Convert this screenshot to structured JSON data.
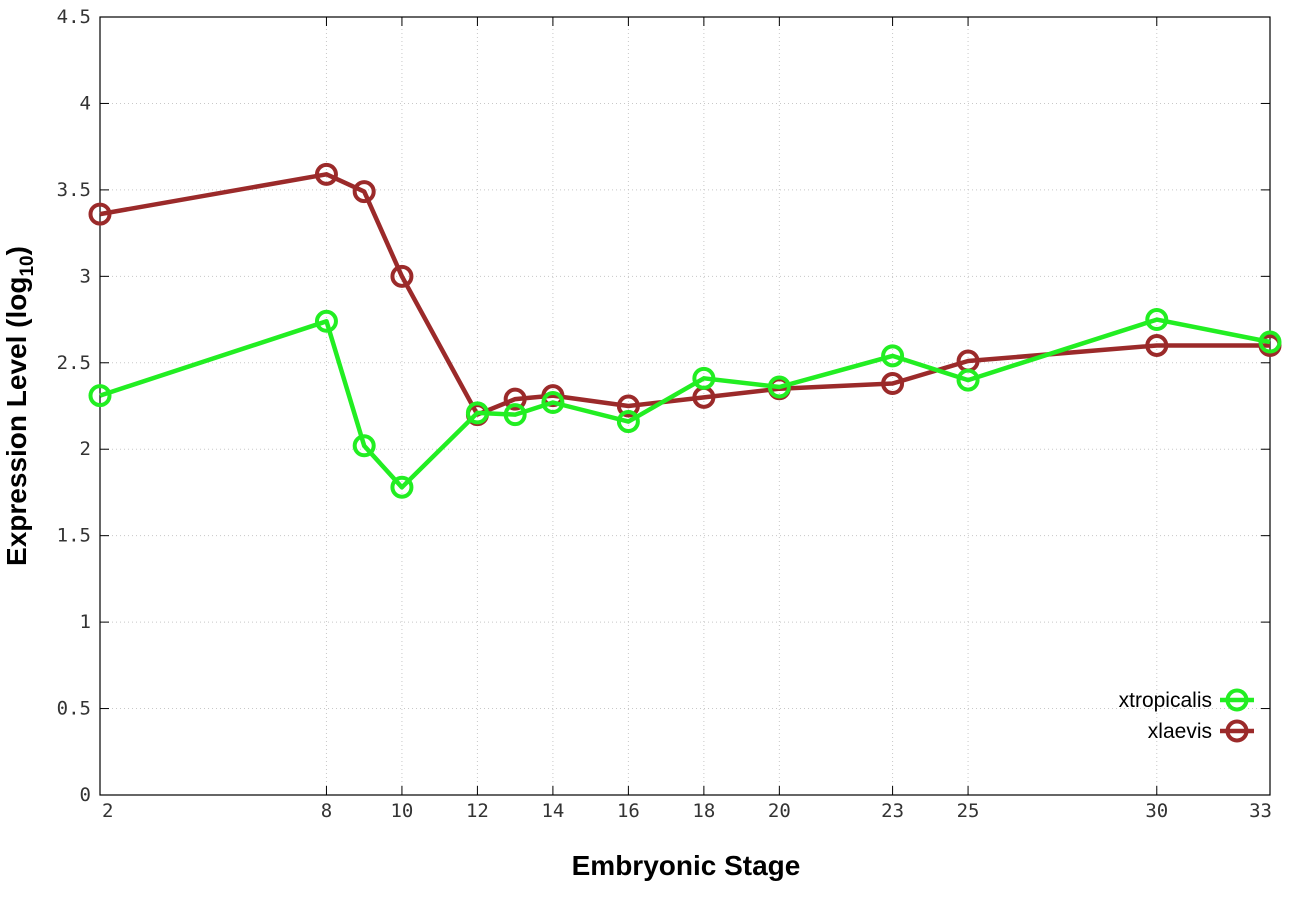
{
  "chart_data": {
    "type": "line",
    "title": "",
    "xlabel": "Embryonic Stage",
    "ylabel_main": "Expression Level (log",
    "ylabel_sub": "10",
    "ylabel_close": ")",
    "xlim": [
      2,
      33
    ],
    "ylim": [
      0,
      4.5
    ],
    "x_ticks": [
      2,
      8,
      10,
      12,
      14,
      16,
      18,
      20,
      23,
      25,
      30,
      33
    ],
    "y_ticks": [
      0,
      0.5,
      1,
      1.5,
      2,
      2.5,
      3,
      3.5,
      4,
      4.5
    ],
    "y_tick_labels": [
      "0",
      "0.5",
      "1",
      "1.5",
      "2",
      "2.5",
      "3",
      "3.5",
      "4",
      "4.5"
    ],
    "grid": true,
    "legend_position": "bottom-right",
    "x": [
      2,
      8,
      9,
      10,
      12,
      13,
      14,
      16,
      18,
      20,
      23,
      25,
      30,
      33
    ],
    "series": [
      {
        "name": "xtropicalis",
        "color": "#22ee22",
        "values": [
          2.31,
          2.74,
          2.02,
          1.78,
          2.21,
          2.2,
          2.27,
          2.16,
          2.41,
          2.36,
          2.54,
          2.4,
          2.75,
          2.62
        ]
      },
      {
        "name": "xlaevis",
        "color": "#9b2a2a",
        "values": [
          3.36,
          3.59,
          3.49,
          3.0,
          2.2,
          2.29,
          2.31,
          2.25,
          2.3,
          2.35,
          2.38,
          2.51,
          2.6,
          2.6
        ]
      }
    ]
  }
}
